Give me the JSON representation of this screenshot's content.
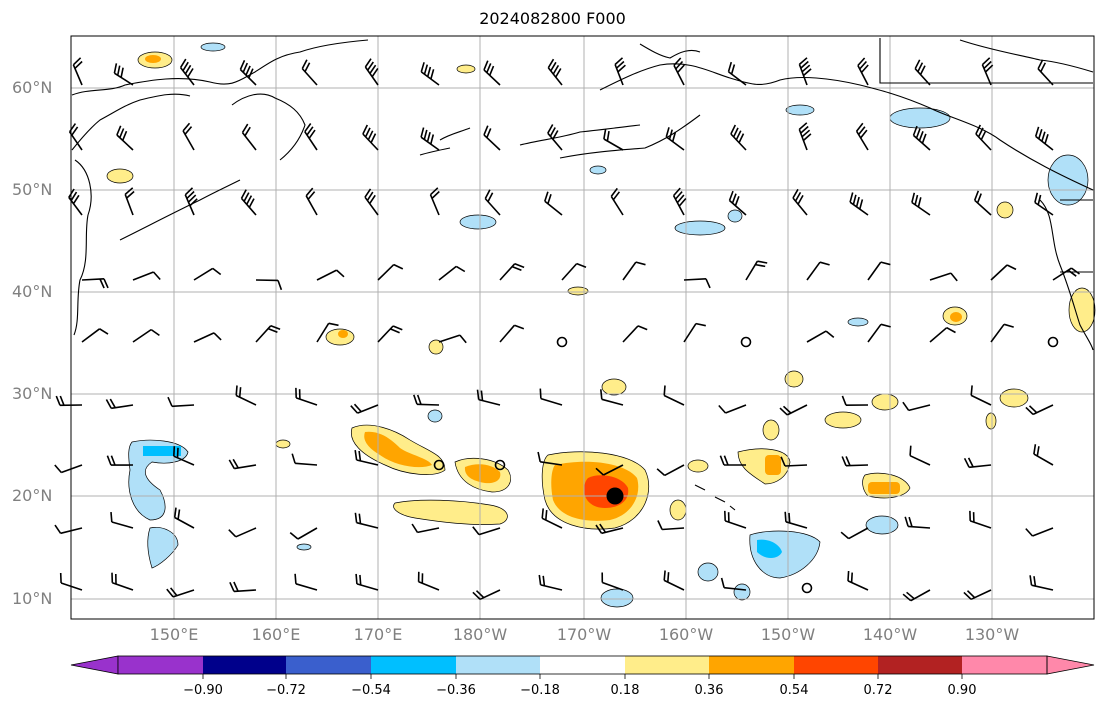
{
  "title": "2024082800 F000",
  "lat_labels": [
    "60°N",
    "50°N",
    "40°N",
    "30°N",
    "20°N",
    "10°N"
  ],
  "lon_labels": [
    "150°E",
    "160°E",
    "170°E",
    "180°W",
    "170°W",
    "160°W",
    "150°W",
    "140°W",
    "130°W"
  ],
  "colorbar": {
    "ticks": [
      "−0.90",
      "−0.72",
      "−0.54",
      "−0.36",
      "−0.18",
      "0.18",
      "0.36",
      "0.54",
      "0.72",
      "0.90"
    ],
    "colors": [
      "#9932cc",
      "#00008b",
      "#3a5fcd",
      "#00bfff",
      "#b0e0f8",
      "#ffffff",
      "#ffed8a",
      "#ffa500",
      "#ff4500",
      "#b22222",
      "#ff88aa"
    ]
  },
  "colors": {
    "gridline": "#b0b0b0",
    "coastline": "#000000",
    "barb": "#000000"
  }
}
